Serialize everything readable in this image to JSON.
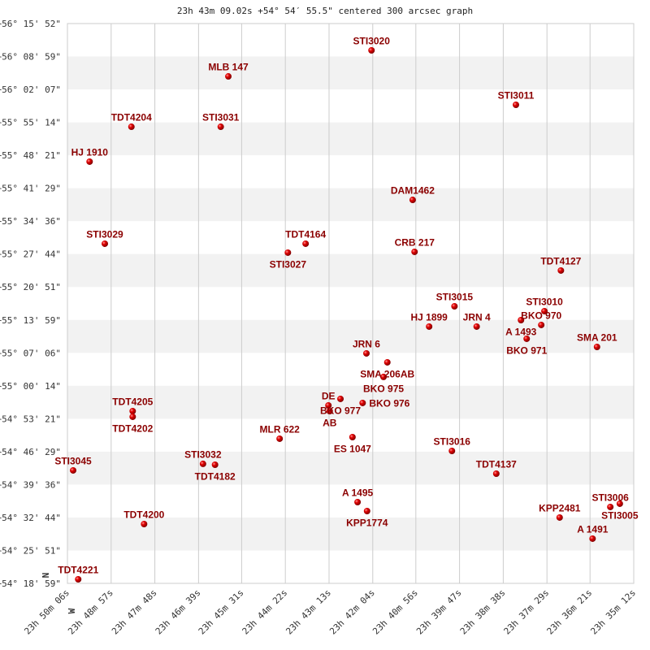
{
  "chart_data": {
    "type": "scatter",
    "title": "23h 43m 09.02s +54° 54′ 55.5\" centered 300 arcsec graph",
    "x_units": "RA seconds after 23h",
    "y_units": "Dec arcsec after +54°",
    "xlim": [
      3006,
      2112
    ],
    "ylim": [
      1139,
      8152
    ],
    "x_ticks": [
      3006,
      2937,
      2868,
      2799,
      2731,
      2662,
      2593,
      2524,
      2456,
      2387,
      2318,
      2249,
      2181,
      2112
    ],
    "x_tick_labels": [
      "23h 50m 06s",
      "23h 48m 57s",
      "23h 47m 48s",
      "23h 46m 39s",
      "23h 45m 31s",
      "23h 44m 22s",
      "23h 43m 13s",
      "23h 42m 04s",
      "23h 40m 56s",
      "23h 39m 47s",
      "23h 38m 38s",
      "23h 37m 29s",
      "23h 36m 21s",
      "23h 35m 12s"
    ],
    "y_tick_labels": [
      "+56° 15' 52\"",
      "+56° 08' 59\"",
      "+56° 02' 07\"",
      "+55° 55' 14\"",
      "+55° 48' 21\"",
      "+55° 41' 29\"",
      "+55° 34' 36\"",
      "+55° 27' 44\"",
      "+55° 20' 51\"",
      "+55° 13' 59\"",
      "+55° 07' 06\"",
      "+55° 00' 14\"",
      "+54° 53' 21\"",
      "+54° 46' 29\"",
      "+54° 39' 36\"",
      "+54° 32' 44\"",
      "+54° 25' 51\"",
      "+54° 18' 59\""
    ],
    "grid": true,
    "compass": {
      "north": "N",
      "west": "W"
    },
    "points": [
      {
        "name": "STI3020",
        "ra": 2526,
        "dec": 7816
      },
      {
        "name": "MLB 147",
        "ra": 2752,
        "dec": 7490
      },
      {
        "name": "STI3011",
        "ra": 2298,
        "dec": 7134
      },
      {
        "name": "TDT4204",
        "ra": 2905,
        "dec": 6859
      },
      {
        "name": "STI3031",
        "ra": 2764,
        "dec": 6859
      },
      {
        "name": "HJ 1910",
        "ra": 2971,
        "dec": 6422
      },
      {
        "name": "DAM1462",
        "ra": 2461,
        "dec": 5943
      },
      {
        "name": "STI3029",
        "ra": 2947,
        "dec": 5394
      },
      {
        "name": "TDT4164",
        "ra": 2630,
        "dec": 5394
      },
      {
        "name": "STI3027",
        "ra": 2658,
        "dec": 5282
      },
      {
        "name": "CRB 217",
        "ra": 2458,
        "dec": 5292
      },
      {
        "name": "TDT4127",
        "ra": 2227,
        "dec": 5058
      },
      {
        "name": "STI3015",
        "ra": 2395,
        "dec": 4610
      },
      {
        "name": "STI3010",
        "ra": 2253,
        "dec": 4549
      },
      {
        "name": "A  1493",
        "ra": 2290,
        "dec": 4437
      },
      {
        "name": "BKO 970",
        "ra": 2258,
        "dec": 4376
      },
      {
        "name": "BKO 971",
        "ra": 2281,
        "dec": 4203
      },
      {
        "name": "HJ 1899",
        "ra": 2435,
        "dec": 4356
      },
      {
        "name": "JRN   4",
        "ra": 2360,
        "dec": 4356
      },
      {
        "name": "SMA 201",
        "ra": 2170,
        "dec": 4101
      },
      {
        "name": "JRN   6",
        "ra": 2534,
        "dec": 4020
      },
      {
        "name": "SMA 206AB",
        "ra": 2501,
        "dec": 3908
      },
      {
        "name": "BKO 975",
        "ra": 2507,
        "dec": 3725
      },
      {
        "name": "BKO 977",
        "ra": 2575,
        "dec": 3450
      },
      {
        "name": "BKO 976",
        "ra": 2540,
        "dec": 3399
      },
      {
        "name": "DE",
        "ra": 2594,
        "dec": 3368
      },
      {
        "name": "AB",
        "ra": 2592,
        "dec": 3297
      },
      {
        "name": "TDT4205",
        "ra": 2903,
        "dec": 3297
      },
      {
        "name": "TDT4202",
        "ra": 2903,
        "dec": 3226
      },
      {
        "name": "MLR 622",
        "ra": 2671,
        "dec": 2951
      },
      {
        "name": "ES 1047",
        "ra": 2556,
        "dec": 2971
      },
      {
        "name": "STI3016",
        "ra": 2399,
        "dec": 2798
      },
      {
        "name": "STI3032",
        "ra": 2792,
        "dec": 2636
      },
      {
        "name": "TDT4182",
        "ra": 2773,
        "dec": 2625
      },
      {
        "name": "STI3045",
        "ra": 2997,
        "dec": 2554
      },
      {
        "name": "TDT4137",
        "ra": 2329,
        "dec": 2513
      },
      {
        "name": "A  1495",
        "ra": 2548,
        "dec": 2157
      },
      {
        "name": "KPP1774",
        "ra": 2533,
        "dec": 2045
      },
      {
        "name": "STI3006",
        "ra": 2149,
        "dec": 2096
      },
      {
        "name": "STI3005",
        "ra": 2134,
        "dec": 2137
      },
      {
        "name": "KPP2481",
        "ra": 2229,
        "dec": 1964
      },
      {
        "name": "TDT4200",
        "ra": 2885,
        "dec": 1882
      },
      {
        "name": "A  1491",
        "ra": 2177,
        "dec": 1699
      },
      {
        "name": "TDT4221",
        "ra": 2989,
        "dec": 1190
      }
    ]
  }
}
